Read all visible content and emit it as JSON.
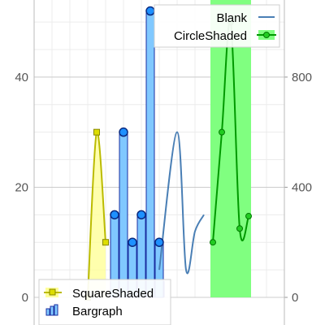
{
  "chart_data": {
    "type": "line",
    "title": "",
    "xlabel": "",
    "ylabel": "",
    "grid": true,
    "x_range": [
      0,
      28
    ],
    "y_axis_left": {
      "range": [
        0,
        54
      ],
      "ticks": [
        "0",
        "20",
        "40"
      ]
    },
    "y_axis_right": {
      "range": [
        0,
        1080
      ],
      "ticks": [
        "0",
        "400",
        "800"
      ]
    },
    "series": [
      {
        "name": "Blank",
        "kind": "smooth-line",
        "axis": "left",
        "color": "#4a7fb5",
        "marker": "none",
        "x": [
          14,
          16,
          17,
          18,
          19
        ],
        "y": [
          5,
          30,
          5,
          12,
          15
        ]
      },
      {
        "name": "CircleShaded",
        "kind": "smooth-line",
        "axis": "right",
        "color": "#009900",
        "shade_color": "#80ff80",
        "marker": "circle",
        "shade_x": [
          20,
          24
        ],
        "x": [
          20,
          21,
          22,
          23,
          24
        ],
        "y": [
          200,
          600,
          1000,
          250,
          295
        ]
      },
      {
        "name": "SquareShaded",
        "kind": "smooth-line",
        "axis": "left",
        "color": "#bbbb00",
        "shade_color": "#ffff99",
        "marker": "square",
        "x": [
          6,
          7,
          8
        ],
        "y": [
          0,
          30,
          10
        ]
      },
      {
        "name": "Bargraph",
        "kind": "bar",
        "axis": "left",
        "color": "#80c8ff",
        "edge_color": "#1a2ea0",
        "marker": "circle",
        "x": [
          9,
          10,
          11,
          12,
          13,
          14,
          15
        ],
        "y": [
          15,
          30,
          10,
          15,
          52,
          10,
          0
        ]
      }
    ],
    "legend": [
      {
        "position": "top-right",
        "entries": [
          "Blank",
          "CircleShaded"
        ]
      },
      {
        "position": "bottom-left",
        "entries": [
          "SquareShaded",
          "Bargraph"
        ]
      }
    ]
  },
  "icons": {
    "blank": "line-swatch-icon",
    "circle_shaded": "shaded-circle-line-icon",
    "square_shaded": "shaded-square-line-icon",
    "bargraph": "bar-chart-icon"
  }
}
